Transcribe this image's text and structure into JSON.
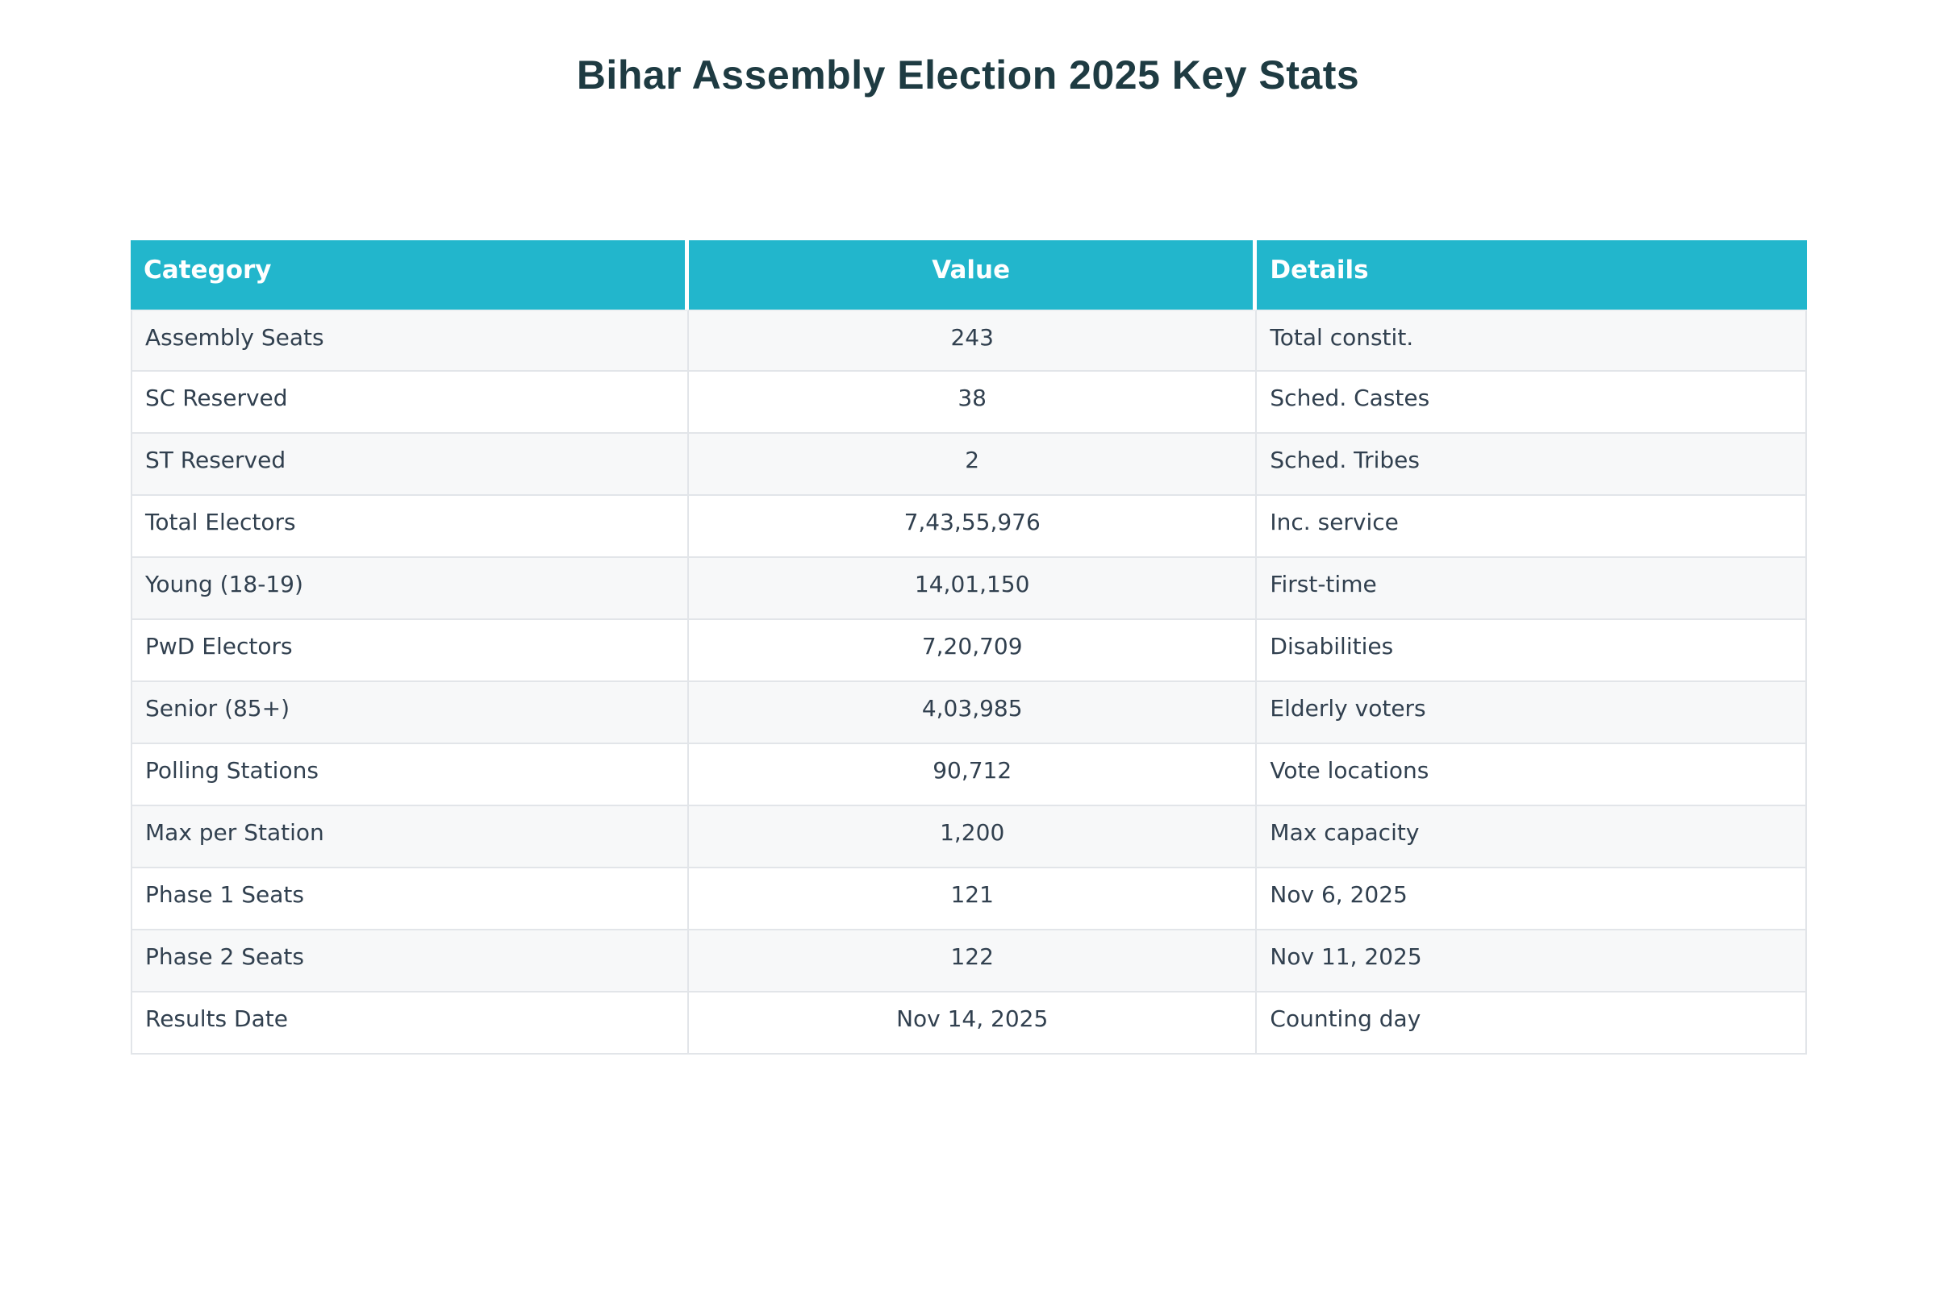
{
  "page": {
    "title": "Bihar Assembly Election 2025 Key Stats"
  },
  "colors": {
    "header_bg": "#22b6cc",
    "header_text": "#ffffff",
    "title_text": "#1e3b42",
    "cell_text": "#31404f",
    "row_alt_bg": "#f7f8f9",
    "border": "#e2e5e9",
    "page_bg": "#ffffff"
  },
  "chart_data": {
    "type": "table",
    "title": "Bihar Assembly Election 2025 Key Stats",
    "columns": [
      "Category",
      "Value",
      "Details"
    ],
    "rows": [
      [
        "Assembly Seats",
        "243",
        "Total constit."
      ],
      [
        "SC Reserved",
        "38",
        "Sched. Castes"
      ],
      [
        "ST Reserved",
        "2",
        "Sched. Tribes"
      ],
      [
        "Total Electors",
        "7,43,55,976",
        "Inc. service"
      ],
      [
        "Young (18-19)",
        "14,01,150",
        "First-time"
      ],
      [
        "PwD Electors",
        "7,20,709",
        "Disabilities"
      ],
      [
        "Senior (85+)",
        "4,03,985",
        "Elderly voters"
      ],
      [
        "Polling Stations",
        "90,712",
        "Vote locations"
      ],
      [
        "Max per Station",
        "1,200",
        "Max capacity"
      ],
      [
        "Phase 1 Seats",
        "121",
        "Nov 6, 2025"
      ],
      [
        "Phase 2 Seats",
        "122",
        "Nov 11, 2025"
      ],
      [
        "Results Date",
        "Nov 14, 2025",
        "Counting day"
      ]
    ],
    "layout": {
      "value_column_align": "center",
      "zebra_striping": true,
      "grid": true
    }
  }
}
